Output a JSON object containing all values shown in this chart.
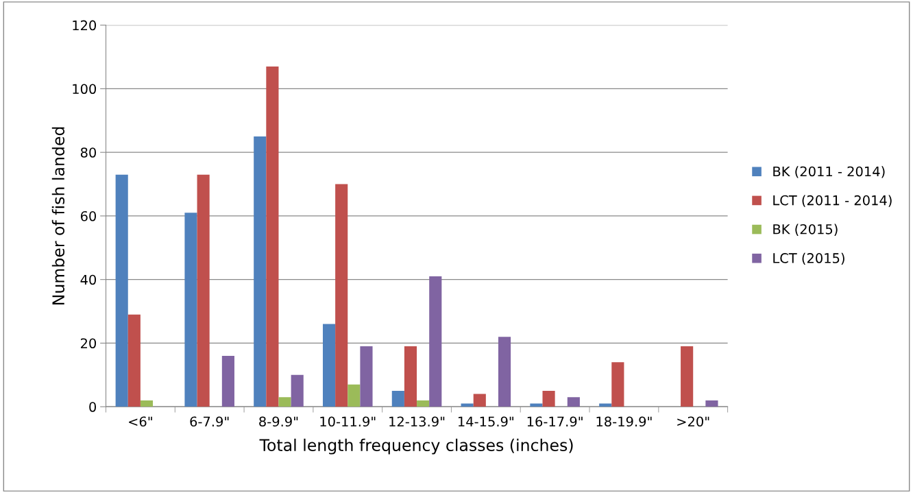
{
  "chart_data": {
    "type": "bar",
    "xlabel": "Total length frequency classes (inches)",
    "ylabel": "Number of fish landed",
    "categories": [
      "<6\"",
      "6-7.9\"",
      "8-9.9\"",
      "10-11.9\"",
      "12-13.9\"",
      "14-15.9\"",
      "16-17.9\"",
      "18-19.9\"",
      ">20\""
    ],
    "series": [
      {
        "name": "BK (2011 - 2014)",
        "color": "#4f81bd",
        "values": [
          73,
          61,
          85,
          26,
          5,
          1,
          1,
          1,
          0
        ]
      },
      {
        "name": "LCT (2011 - 2014)",
        "color": "#c0504d",
        "values": [
          29,
          73,
          107,
          70,
          19,
          4,
          5,
          14,
          19
        ]
      },
      {
        "name": "BK (2015)",
        "color": "#9bbb59",
        "values": [
          2,
          0,
          3,
          7,
          2,
          0,
          0,
          0,
          0
        ]
      },
      {
        "name": "LCT (2015)",
        "color": "#8064a2",
        "values": [
          0,
          16,
          10,
          19,
          41,
          22,
          3,
          0,
          2
        ]
      }
    ],
    "ylim": [
      0,
      120
    ],
    "yticks": [
      0,
      20,
      40,
      60,
      80,
      100,
      120
    ],
    "grid": "y",
    "legend": "right"
  }
}
